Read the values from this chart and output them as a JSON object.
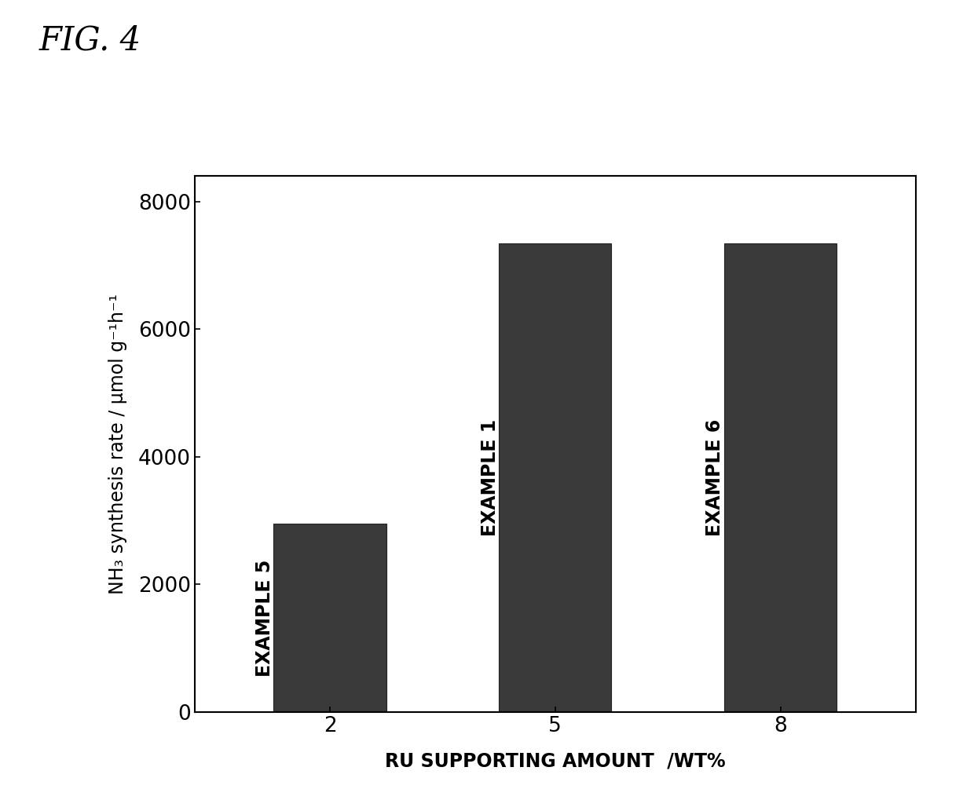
{
  "categories": [
    2,
    5,
    8
  ],
  "values": [
    2950,
    7350,
    7350
  ],
  "bar_labels": [
    "EXAMPLE 5",
    "EXAMPLE 1",
    "EXAMPLE 6"
  ],
  "bar_color": "#3a3a3a",
  "xlabel": "RU SUPPORTING AMOUNT  /WT%",
  "ylabel": "NH₃ synthesis rate / μmol g⁻¹h⁻¹",
  "ylim": [
    0,
    8400
  ],
  "yticks": [
    0,
    2000,
    4000,
    6000,
    8000
  ],
  "xtick_labels": [
    "2",
    "5",
    "8"
  ],
  "fig_title": "FIG. 4",
  "title_fontsize": 30,
  "axis_fontsize": 17,
  "tick_fontsize": 19,
  "bar_label_fontsize": 17,
  "xlabel_fontsize": 17,
  "background_color": "#ffffff"
}
